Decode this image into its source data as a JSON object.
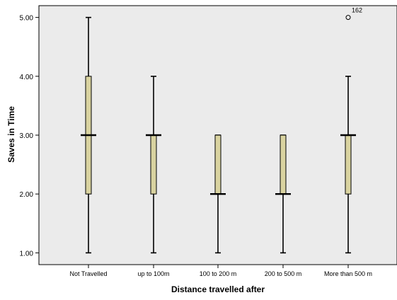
{
  "chart_data": {
    "type": "boxplot",
    "xlabel": "Distance travelled after",
    "ylabel": "Saves in Time",
    "categories": [
      "Not Travelled",
      "up to 100m",
      "100 to 200 m",
      "200 to 500 m",
      "More than 500 m"
    ],
    "ylim": [
      0.8,
      5.2
    ],
    "yticks": [
      1.0,
      2.0,
      3.0,
      4.0,
      5.0
    ],
    "ytick_labels": [
      "1.00",
      "2.00",
      "3.00",
      "4.00",
      "5.00"
    ],
    "boxes": [
      {
        "category": "Not Travelled",
        "min": 1.0,
        "q1": 2.0,
        "median": 3.0,
        "q3": 4.0,
        "max": 5.0,
        "outliers": []
      },
      {
        "category": "up to 100m",
        "min": 1.0,
        "q1": 2.0,
        "median": 3.0,
        "q3": 3.0,
        "max": 4.0,
        "outliers": []
      },
      {
        "category": "100 to 200 m",
        "min": 1.0,
        "q1": 2.0,
        "median": 2.0,
        "q3": 3.0,
        "max": 3.0,
        "outliers": []
      },
      {
        "category": "200 to 500 m",
        "min": 1.0,
        "q1": 2.0,
        "median": 2.0,
        "q3": 3.0,
        "max": 3.0,
        "outliers": []
      },
      {
        "category": "More than 500 m",
        "min": 1.0,
        "q1": 2.0,
        "median": 3.0,
        "q3": 3.0,
        "max": 4.0,
        "outliers": [
          {
            "value": 5.0,
            "label": "162"
          }
        ]
      }
    ],
    "colors": {
      "plot_background": "#ebebeb",
      "box_fill": "#d9d3a0",
      "box_stroke": "#000000"
    },
    "grid": false,
    "legend": "none"
  }
}
